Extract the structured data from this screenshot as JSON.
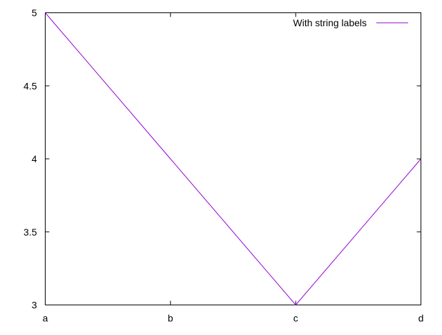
{
  "chart_data": {
    "type": "line",
    "categories": [
      "a",
      "b",
      "c",
      "d"
    ],
    "series": [
      {
        "name": "With string labels",
        "values": [
          5,
          4,
          3,
          4
        ],
        "color": "#9400d3"
      }
    ],
    "yticks": [
      3,
      3.5,
      4,
      4.5,
      5
    ],
    "ytick_labels": [
      "3",
      "3.5",
      "4",
      "4.5",
      "5"
    ],
    "ylim": [
      3,
      5
    ],
    "grid": false,
    "legend_position": "top-right"
  }
}
